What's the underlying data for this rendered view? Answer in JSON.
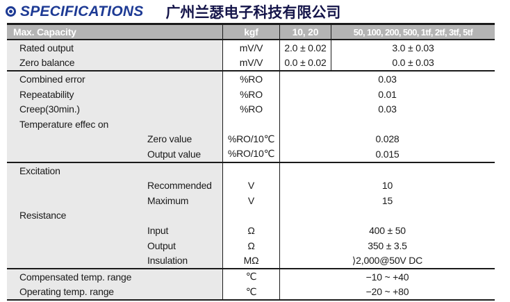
{
  "page": {
    "title": "SPECIFICATIONS",
    "company": "广州兰瑟电子科技有限公司",
    "accent_blue": "#1d3a94",
    "icon": "bullseye-icon"
  },
  "table": {
    "header": {
      "col_label": "Max. Capacity",
      "col_unit": "kgf",
      "col_range1": "10, 20",
      "col_range2": "50, 100, 200, 500, 1tf, 2tf, 3tf, 5tf"
    },
    "sections": [
      {
        "rows": [
          {
            "label": "Rated output",
            "unit": "mV/V",
            "value1": "2.0 ± 0.02",
            "value2": "3.0 ± 0.03",
            "split": true
          },
          {
            "label": "Zero balance",
            "unit": "mV/V",
            "value1": "0.0 ± 0.02",
            "value2": "0.0 ± 0.03",
            "split": true
          }
        ]
      },
      {
        "rows": [
          {
            "label": "Combined error",
            "unit": "%RO",
            "value": "0.03"
          },
          {
            "label": "Repeatability",
            "unit": "%RO",
            "value": "0.01"
          },
          {
            "label": "Creep(30min.)",
            "unit": "%RO",
            "value": "0.03"
          },
          {
            "label": "Temperature effec on",
            "unit": "",
            "value": ""
          },
          {
            "label": "Zero value",
            "indent": true,
            "unit": "%RO/10℃",
            "value": "0.028"
          },
          {
            "label": "Output value",
            "indent": true,
            "unit": "%RO/10℃",
            "value": "0.015"
          }
        ]
      },
      {
        "rows": [
          {
            "label": "Excitation",
            "unit": "",
            "value": ""
          },
          {
            "label": "Recommended",
            "indent": true,
            "unit": "V",
            "value": "10"
          },
          {
            "label": "Maximum",
            "indent": true,
            "unit": "V",
            "value": "15"
          },
          {
            "label": "Resistance",
            "unit": "",
            "value": ""
          },
          {
            "label": "Input",
            "indent": true,
            "unit": "Ω",
            "value": "400 ± 50"
          },
          {
            "label": "Output",
            "indent": true,
            "unit": "Ω",
            "value": "350 ± 3.5"
          },
          {
            "label": "Insulation",
            "indent": true,
            "unit": "MΩ",
            "value": "⟩2,000@50V DC"
          }
        ]
      },
      {
        "rows": [
          {
            "label": "Compensated temp. range",
            "unit": "℃",
            "value": "−10 ~ +40"
          },
          {
            "label": "Operating temp. range",
            "unit": "℃",
            "value": "−20 ~ +80"
          }
        ]
      }
    ]
  }
}
